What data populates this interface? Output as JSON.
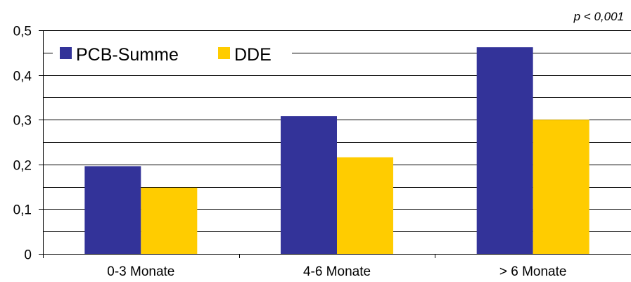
{
  "chart_data": {
    "type": "bar",
    "title": "",
    "xlabel": "",
    "ylabel": "",
    "annotation": "p < 0,001",
    "categories": [
      "0-3 Monate",
      "4-6 Monate",
      "> 6 Monate"
    ],
    "series": [
      {
        "name": "PCB-Summe",
        "color": "#333399",
        "values": [
          0.196,
          0.308,
          0.462
        ]
      },
      {
        "name": "DDE",
        "color": "#FFCC00",
        "values": [
          0.148,
          0.216,
          0.3
        ]
      }
    ],
    "ylim": [
      0,
      0.5
    ],
    "yticks": [
      0,
      0.1,
      0.2,
      0.3,
      0.4,
      0.5
    ],
    "ytick_labels": [
      "0",
      "0,1",
      "0,2",
      "0,3",
      "0,4",
      "0,5"
    ],
    "minor_gridlines": true,
    "grid": true,
    "legend_position": "top-left"
  }
}
